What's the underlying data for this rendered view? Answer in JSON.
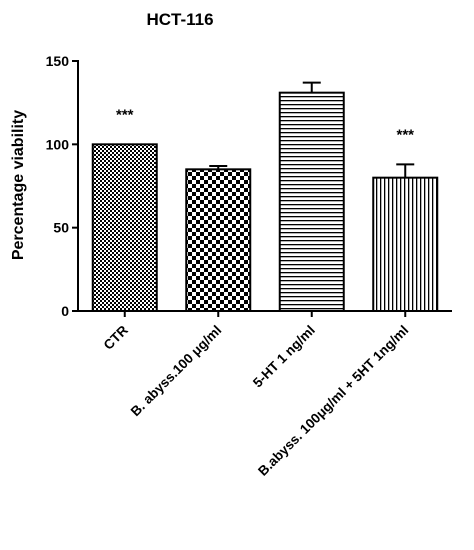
{
  "chart_data": {
    "type": "bar",
    "title": "HCT-116",
    "xlabel": "",
    "ylabel": "Percentage viability",
    "ylim": [
      0,
      150
    ],
    "yticks": [
      0,
      50,
      100,
      150
    ],
    "categories": [
      "CTR",
      "B. abyss.100 μg/ml",
      "5-HT 1 ng/ml",
      "B.abyss. 100μg/ml + 5HT 1ng/ml"
    ],
    "values": [
      100,
      85,
      131,
      80
    ],
    "errors": [
      0,
      2,
      6,
      8
    ],
    "annotations": [
      "***",
      "",
      "",
      "***"
    ],
    "patterns": [
      "fine-checker",
      "coarse-checker",
      "horizontal-lines",
      "vertical-lines"
    ]
  }
}
